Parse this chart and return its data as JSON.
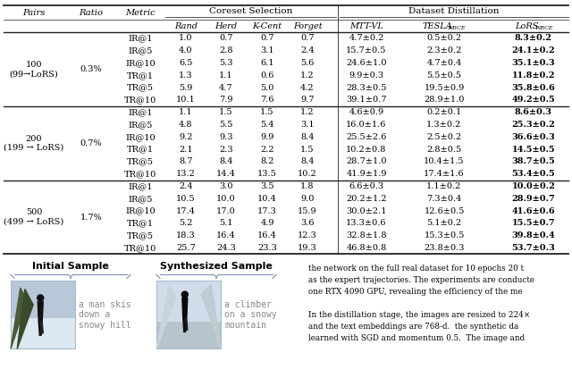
{
  "table": {
    "rows": [
      {
        "pairs": "100\n(99→LoRS)",
        "ratio": "0.3%",
        "metric": "IR@1",
        "rand": "1.0",
        "herd": "0.7",
        "kcent": "0.7",
        "forget": "0.7",
        "mttvl": "4.7±0.2",
        "tesla": "0.5±0.2",
        "lors": "8.3±0.2"
      },
      {
        "pairs": "100\n(99→LoRS)",
        "ratio": "0.3%",
        "metric": "IR@5",
        "rand": "4.0",
        "herd": "2.8",
        "kcent": "3.1",
        "forget": "2.4",
        "mttvl": "15.7±0.5",
        "tesla": "2.3±0.2",
        "lors": "24.1±0.2"
      },
      {
        "pairs": "100\n(99→LoRS)",
        "ratio": "0.3%",
        "metric": "IR@10",
        "rand": "6.5",
        "herd": "5.3",
        "kcent": "6.1",
        "forget": "5.6",
        "mttvl": "24.6±1.0",
        "tesla": "4.7±0.4",
        "lors": "35.1±0.3"
      },
      {
        "pairs": "100\n(99→LoRS)",
        "ratio": "0.3%",
        "metric": "TR@1",
        "rand": "1.3",
        "herd": "1.1",
        "kcent": "0.6",
        "forget": "1.2",
        "mttvl": "9.9±0.3",
        "tesla": "5.5±0.5",
        "lors": "11.8±0.2"
      },
      {
        "pairs": "100\n(99→LoRS)",
        "ratio": "0.3%",
        "metric": "TR@5",
        "rand": "5.9",
        "herd": "4.7",
        "kcent": "5.0",
        "forget": "4.2",
        "mttvl": "28.3±0.5",
        "tesla": "19.5±0.9",
        "lors": "35.8±0.6"
      },
      {
        "pairs": "100\n(99→LoRS)",
        "ratio": "0.3%",
        "metric": "TR@10",
        "rand": "10.1",
        "herd": "7.9",
        "kcent": "7.6",
        "forget": "9.7",
        "mttvl": "39.1±0.7",
        "tesla": "28.9±1.0",
        "lors": "49.2±0.5"
      },
      {
        "pairs": "200\n(199 → LoRS)",
        "ratio": "0.7%",
        "metric": "IR@1",
        "rand": "1.1",
        "herd": "1.5",
        "kcent": "1.5",
        "forget": "1.2",
        "mttvl": "4.6±0.9",
        "tesla": "0.2±0.1",
        "lors": "8.6±0.3"
      },
      {
        "pairs": "200\n(199 → LoRS)",
        "ratio": "0.7%",
        "metric": "IR@5",
        "rand": "4.8",
        "herd": "5.5",
        "kcent": "5.4",
        "forget": "3.1",
        "mttvl": "16.0±1.6",
        "tesla": "1.3±0.2",
        "lors": "25.3±0.2"
      },
      {
        "pairs": "200\n(199 → LoRS)",
        "ratio": "0.7%",
        "metric": "IR@10",
        "rand": "9.2",
        "herd": "9.3",
        "kcent": "9.9",
        "forget": "8.4",
        "mttvl": "25.5±2.6",
        "tesla": "2.5±0.2",
        "lors": "36.6±0.3"
      },
      {
        "pairs": "200\n(199 → LoRS)",
        "ratio": "0.7%",
        "metric": "TR@1",
        "rand": "2.1",
        "herd": "2.3",
        "kcent": "2.2",
        "forget": "1.5",
        "mttvl": "10.2±0.8",
        "tesla": "2.8±0.5",
        "lors": "14.5±0.5"
      },
      {
        "pairs": "200\n(199 → LoRS)",
        "ratio": "0.7%",
        "metric": "TR@5",
        "rand": "8.7",
        "herd": "8.4",
        "kcent": "8.2",
        "forget": "8.4",
        "mttvl": "28.7±1.0",
        "tesla": "10.4±1.5",
        "lors": "38.7±0.5"
      },
      {
        "pairs": "200\n(199 → LoRS)",
        "ratio": "0.7%",
        "metric": "TR@10",
        "rand": "13.2",
        "herd": "14.4",
        "kcent": "13.5",
        "forget": "10.2",
        "mttvl": "41.9±1.9",
        "tesla": "17.4±1.6",
        "lors": "53.4±0.5"
      },
      {
        "pairs": "500\n(499 → LoRS)",
        "ratio": "1.7%",
        "metric": "IR@1",
        "rand": "2.4",
        "herd": "3.0",
        "kcent": "3.5",
        "forget": "1.8",
        "mttvl": "6.6±0.3",
        "tesla": "1.1±0.2",
        "lors": "10.0±0.2"
      },
      {
        "pairs": "500\n(499 → LoRS)",
        "ratio": "1.7%",
        "metric": "IR@5",
        "rand": "10.5",
        "herd": "10.0",
        "kcent": "10.4",
        "forget": "9.0",
        "mttvl": "20.2±1.2",
        "tesla": "7.3±0.4",
        "lors": "28.9±0.7"
      },
      {
        "pairs": "500\n(499 → LoRS)",
        "ratio": "1.7%",
        "metric": "IR@10",
        "rand": "17.4",
        "herd": "17.0",
        "kcent": "17.3",
        "forget": "15.9",
        "mttvl": "30.0±2.1",
        "tesla": "12.6±0.5",
        "lors": "41.6±0.6"
      },
      {
        "pairs": "500\n(499 → LoRS)",
        "ratio": "1.7%",
        "metric": "TR@1",
        "rand": "5.2",
        "herd": "5.1",
        "kcent": "4.9",
        "forget": "3.6",
        "mttvl": "13.3±0.6",
        "tesla": "5.1±0.2",
        "lors": "15.5±0.7"
      },
      {
        "pairs": "500\n(499 → LoRS)",
        "ratio": "1.7%",
        "metric": "TR@5",
        "rand": "18.3",
        "herd": "16.4",
        "kcent": "16.4",
        "forget": "12.3",
        "mttvl": "32.8±1.8",
        "tesla": "15.3±0.5",
        "lors": "39.8±0.4"
      },
      {
        "pairs": "500\n(499 → LoRS)",
        "ratio": "1.7%",
        "metric": "TR@10",
        "rand": "25.7",
        "herd": "24.3",
        "kcent": "23.3",
        "forget": "19.3",
        "mttvl": "46.8±0.8",
        "tesla": "23.8±0.3",
        "lors": "53.7±0.3"
      }
    ]
  },
  "bottom_left": {
    "initial_label": "Initial Sample",
    "synthesized_label": "Synthesized Sample",
    "initial_caption": "a man skis\ndown a\nsnowy hill",
    "synthesized_caption": "a climber\non a snowy\nmountain"
  },
  "bottom_right_text_para1": "the network on the full real dataset for 10 epochs 20 t\nas the expert trajectories. The experiments are conducte\none RTX 4090 GPU, revealing the efficiency of the me",
  "bottom_right_text_para2": "In the distillation stage, the images are resized to 224×\nand the text embeddings are 768-d.  the synthetic da\nlearned with SGD and momentum 0.5.  The image and",
  "col_centers_norm": {
    "pairs": 0.053,
    "ratio": 0.145,
    "metric": 0.225,
    "rand": 0.298,
    "herd": 0.358,
    "kcent": 0.418,
    "forget": 0.481,
    "mttvl": 0.572,
    "tesla": 0.685,
    "lors": 0.91
  }
}
